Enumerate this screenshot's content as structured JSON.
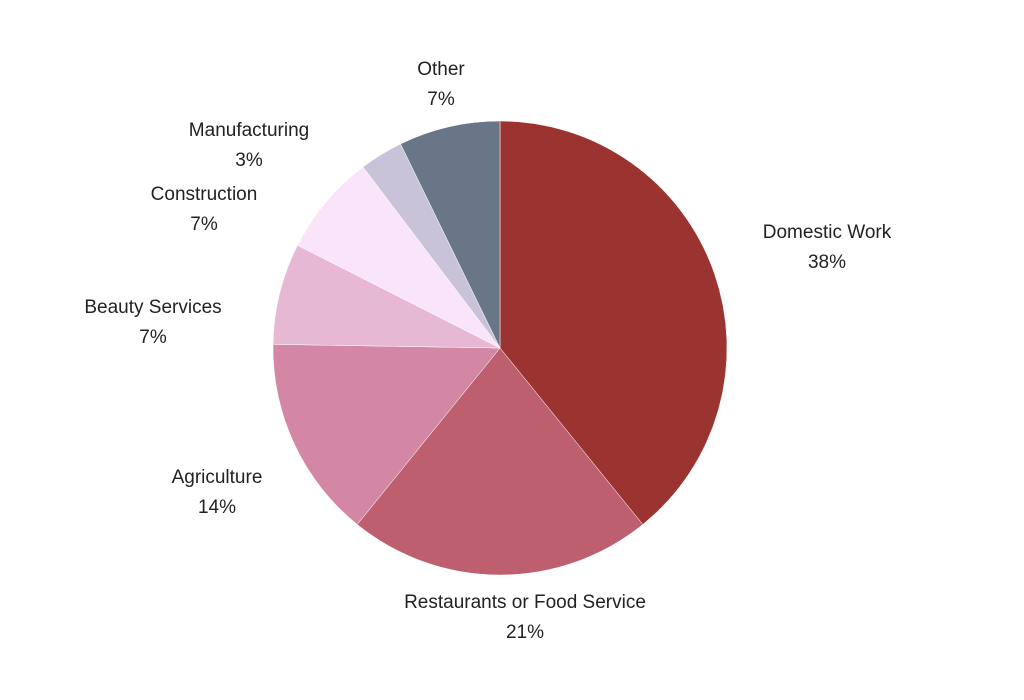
{
  "chart_data": {
    "type": "pie",
    "title": "",
    "legend": "none",
    "start_angle_deg": 0,
    "direction": "clockwise",
    "series": [
      {
        "name": "Domestic Work",
        "value": 38,
        "label": "38%",
        "color": "#9b3330"
      },
      {
        "name": "Restaurants or Food Service",
        "value": 21,
        "label": "21%",
        "color": "#bd5f6e"
      },
      {
        "name": "Agriculture",
        "value": 14,
        "label": "14%",
        "color": "#d487a4"
      },
      {
        "name": "Beauty Services",
        "value": 7,
        "label": "7%",
        "color": "#e6b8d4"
      },
      {
        "name": "Construction",
        "value": 7,
        "label": "7%",
        "color": "#f9e4f9"
      },
      {
        "name": "Manufacturing",
        "value": 3,
        "label": "3%",
        "color": "#c9c3da"
      },
      {
        "name": "Other",
        "value": 7,
        "label": "7%",
        "color": "#687688"
      }
    ]
  }
}
